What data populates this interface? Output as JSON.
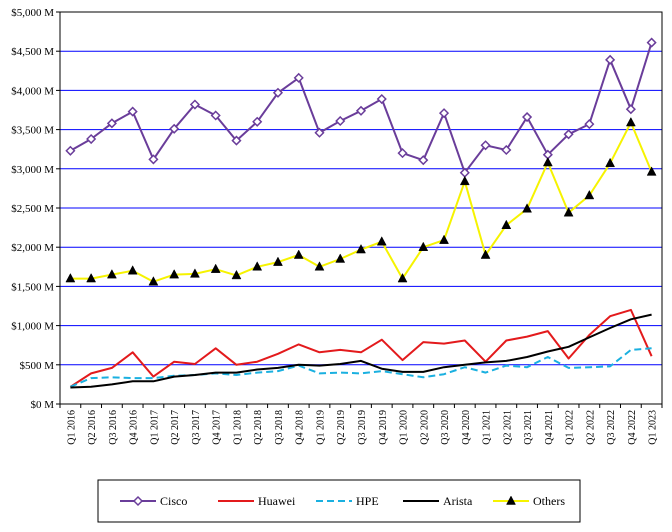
{
  "chart_data": {
    "type": "line",
    "title": "",
    "xlabel": "",
    "ylabel": "",
    "ylim": [
      0,
      5000
    ],
    "ytick_labels": [
      "$0 M",
      "$500 M",
      "$1,000 M",
      "$1,500 M",
      "$2,000 M",
      "$2,500 M",
      "$3,000 M",
      "$3,500 M",
      "$4,000 M",
      "$4,500 M",
      "$5,000 M"
    ],
    "grid": "horizontal",
    "legend_position": "bottom",
    "categories": [
      "Q1 2016",
      "Q2 2016",
      "Q3 2016",
      "Q4 2016",
      "Q1 2017",
      "Q2 2017",
      "Q3 2017",
      "Q4 2017",
      "Q1 2018",
      "Q2 2018",
      "Q3 2018",
      "Q4 2018",
      "Q1 2019",
      "Q2 2019",
      "Q3 2019",
      "Q4 2019",
      "Q1 2020",
      "Q2 2020",
      "Q3 2020",
      "Q4 2020",
      "Q1 2021",
      "Q2 2021",
      "Q3 2021",
      "Q4 2021",
      "Q1 2022",
      "Q2 2022",
      "Q3 2022",
      "Q4 2022",
      "Q1 2023"
    ],
    "series": [
      {
        "name": "Cisco",
        "color": "#6a3d9a",
        "marker": "diamond-open",
        "dash": "solid",
        "values": [
          3230,
          3380,
          3580,
          3730,
          3120,
          3510,
          3820,
          3680,
          3360,
          3600,
          3970,
          4160,
          3460,
          3610,
          3740,
          3890,
          3200,
          3110,
          3710,
          2950,
          3300,
          3240,
          3660,
          3180,
          3440,
          3570,
          4390,
          3760,
          4610
        ]
      },
      {
        "name": "Huawei",
        "color": "#e31a1c",
        "marker": "none",
        "dash": "solid",
        "values": [
          220,
          390,
          460,
          660,
          350,
          540,
          510,
          710,
          500,
          540,
          640,
          760,
          660,
          690,
          660,
          820,
          560,
          790,
          770,
          810,
          540,
          810,
          860,
          930,
          580,
          880,
          1120,
          1200,
          610
        ]
      },
      {
        "name": "HPE",
        "color": "#1ab0e0",
        "marker": "none",
        "dash": "dashed",
        "values": [
          220,
          330,
          340,
          330,
          330,
          360,
          370,
          390,
          370,
          400,
          420,
          490,
          390,
          400,
          390,
          420,
          380,
          340,
          380,
          470,
          400,
          490,
          470,
          600,
          460,
          470,
          480,
          690,
          710
        ]
      },
      {
        "name": "Arista",
        "color": "#000000",
        "marker": "none",
        "dash": "solid",
        "values": [
          210,
          220,
          250,
          290,
          290,
          350,
          370,
          400,
          400,
          440,
          460,
          500,
          490,
          510,
          550,
          450,
          410,
          410,
          470,
          500,
          530,
          550,
          600,
          670,
          730,
          850,
          970,
          1080,
          1140
        ]
      },
      {
        "name": "Others",
        "color": "#f6f300",
        "marker": "triangle",
        "dash": "solid",
        "values": [
          1600,
          1600,
          1650,
          1700,
          1560,
          1650,
          1660,
          1720,
          1640,
          1750,
          1810,
          1900,
          1750,
          1850,
          1970,
          2070,
          1600,
          2000,
          2090,
          2840,
          1900,
          2280,
          2490,
          3080,
          2440,
          2660,
          3070,
          3590,
          2960
        ]
      }
    ]
  }
}
